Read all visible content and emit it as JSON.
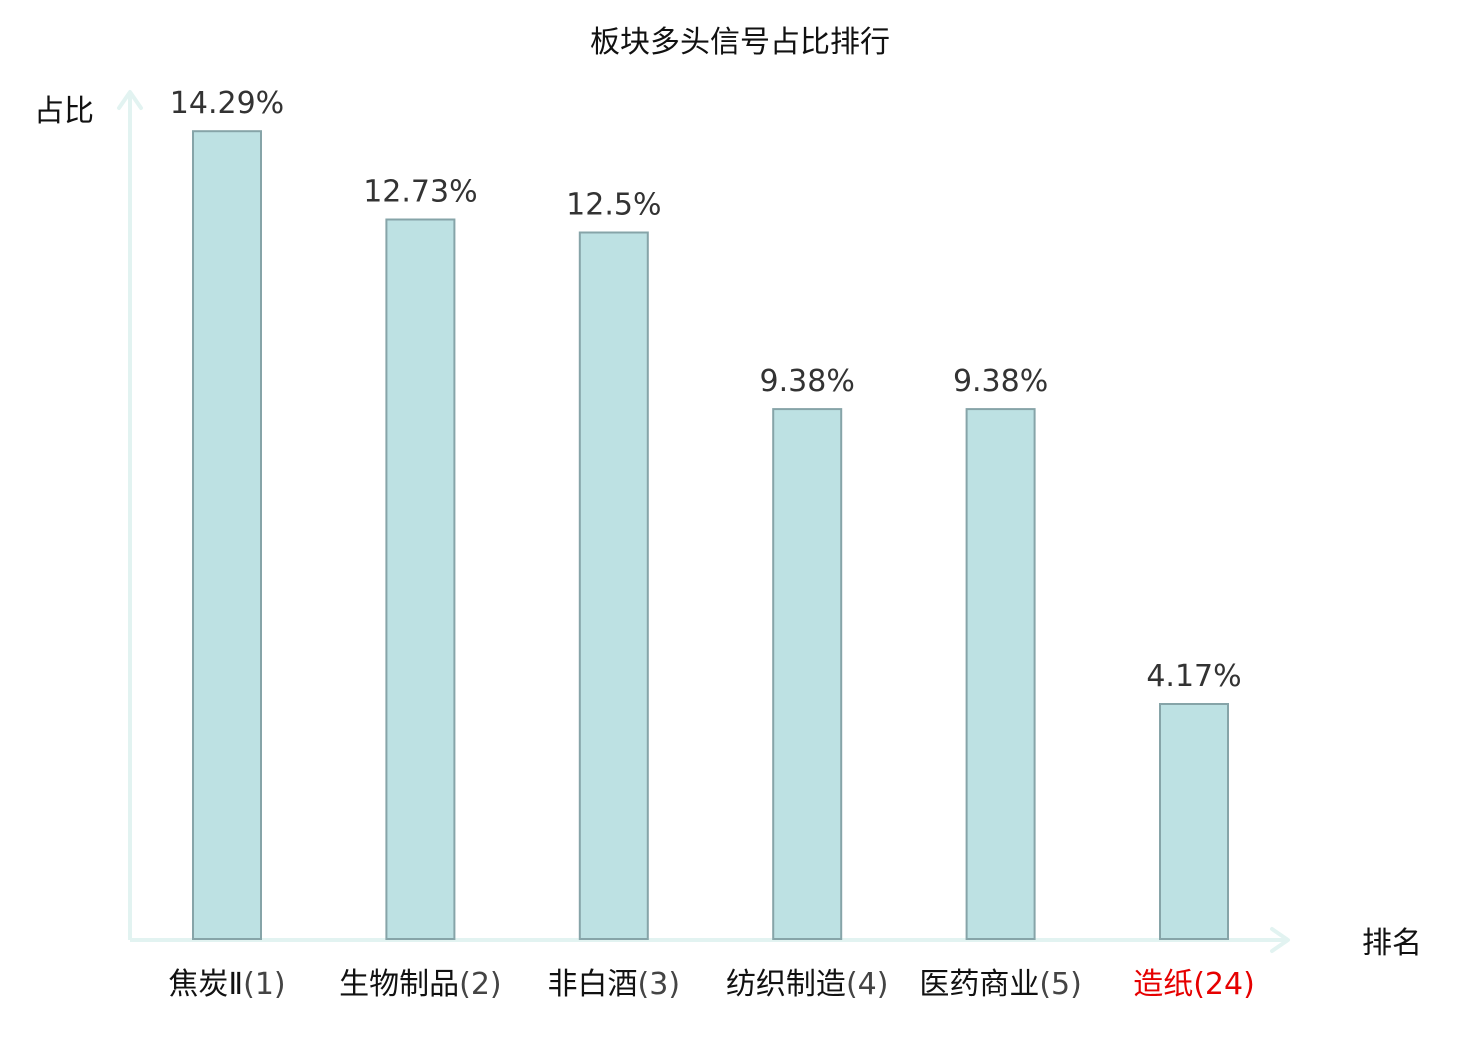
{
  "chart_data": {
    "type": "bar",
    "title": "板块多头信号占比排行",
    "ylabel": "占比",
    "xlabel": "排名",
    "ylim": [
      0,
      15
    ],
    "grid": false,
    "categories": [
      {
        "name": "焦炭Ⅱ",
        "rank": "(1)",
        "highlight": false
      },
      {
        "name": "生物制品",
        "rank": "(2)",
        "highlight": false
      },
      {
        "name": "非白酒",
        "rank": "(3)",
        "highlight": false
      },
      {
        "name": "纺织制造",
        "rank": "(4)",
        "highlight": false
      },
      {
        "name": "医药商业",
        "rank": "(5)",
        "highlight": false
      },
      {
        "name": "造纸",
        "rank": "(24)",
        "highlight": true
      }
    ],
    "values": [
      14.29,
      12.73,
      12.5,
      9.38,
      9.38,
      4.17
    ],
    "value_labels": [
      "14.29%",
      "12.73%",
      "12.5%",
      "9.38%",
      "9.38%",
      "4.17%"
    ]
  },
  "colors": {
    "bar_fill": "#bde1e3",
    "bar_stroke": "#86a4a8",
    "axis": "#e2f3f1",
    "highlight": "#e60000",
    "text": "#111111",
    "value_text": "#333333"
  }
}
